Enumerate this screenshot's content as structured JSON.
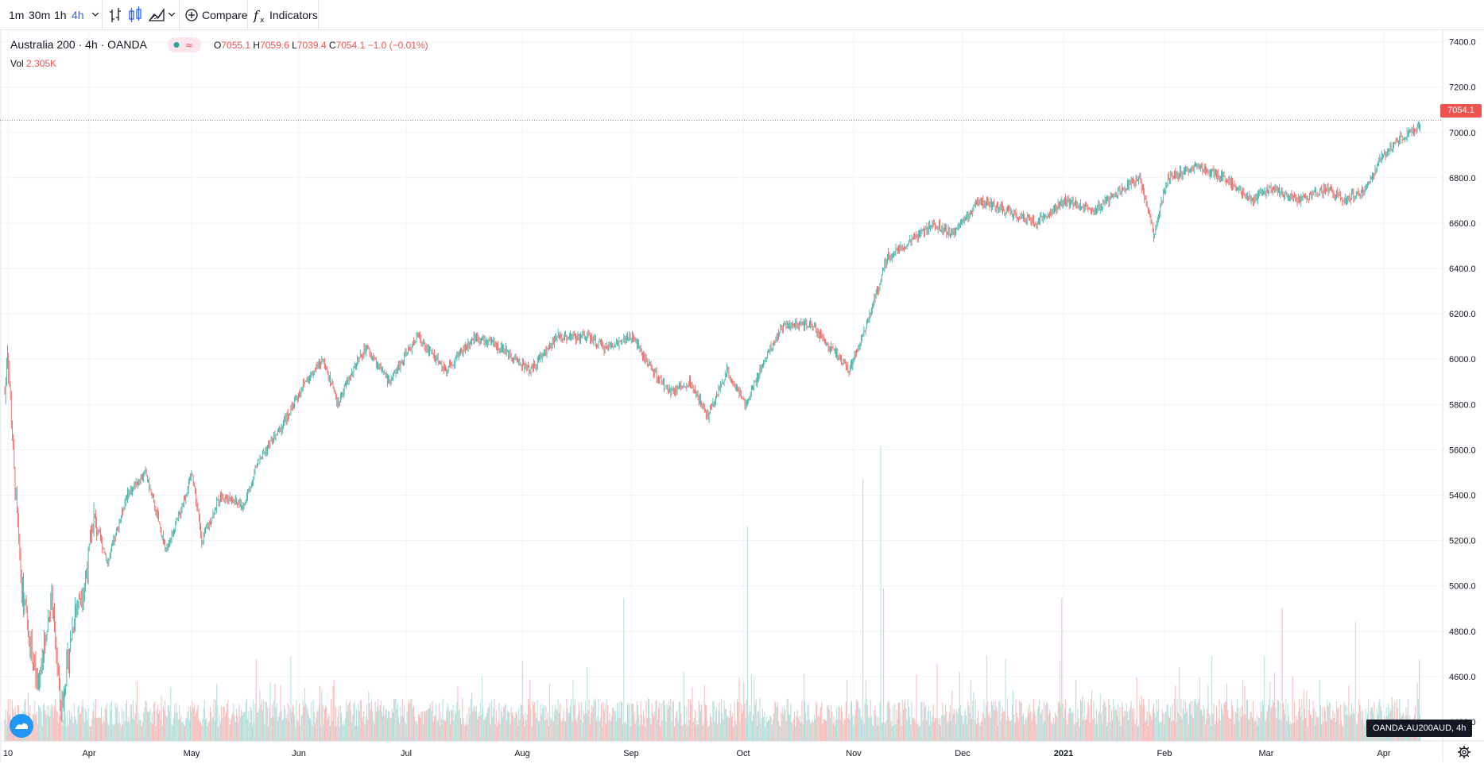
{
  "toolbar": {
    "intervals": [
      "1m",
      "30m",
      "1h",
      "4h"
    ],
    "active_interval": "4h",
    "compare_label": "Compare",
    "indicators_label": "Indicators"
  },
  "legend": {
    "symbol_title": "Australia 200 · 4h · OANDA",
    "open_key": "O",
    "open": "7055.1",
    "high_key": "H",
    "high": "7059.6",
    "low_key": "L",
    "low": "7039.4",
    "close_key": "C",
    "close": "7054.1",
    "change": "−1.0 (−0.01%)",
    "vol_key": "Vol",
    "vol": "2.305K"
  },
  "price_badge": "7054.1",
  "series_badge": "OANDA:AU200AUD, 4h",
  "colors": {
    "up": "#26a69a",
    "down": "#ef5350",
    "accent": "#2962ff",
    "grid": "#f0f3fa"
  },
  "icons": [
    "chevron-down-icon",
    "bar-chart-icon",
    "candles-icon",
    "area-chart-icon",
    "plus-circle-icon",
    "fx-icon",
    "gear-icon",
    "tv-logo-icon"
  ],
  "chart_data": {
    "type": "candlestick",
    "title": "Australia 200 · 4h · OANDA",
    "y_ticks": [
      "7400.0",
      "7200.0",
      "7000.0",
      "6800.0",
      "6600.0",
      "6400.0",
      "6200.0",
      "6000.0",
      "5800.0",
      "5600.0",
      "5400.0",
      "5200.0",
      "5000.0",
      "4800.0",
      "4600.0",
      "4400.0"
    ],
    "ylim": [
      4330,
      7430
    ],
    "x_ticks": [
      "10",
      "Apr",
      "May",
      "Jun",
      "Jul",
      "Aug",
      "Sep",
      "Oct",
      "Nov",
      "Dec",
      "2021",
      "Feb",
      "Mar",
      "Apr"
    ],
    "grid": true,
    "last_price": 7054.1,
    "price_path": [
      [
        0,
        5850
      ],
      [
        3,
        6050
      ],
      [
        10,
        5500
      ],
      [
        18,
        5000
      ],
      [
        25,
        4800
      ],
      [
        35,
        4550
      ],
      [
        50,
        4950
      ],
      [
        60,
        4450
      ],
      [
        75,
        4900
      ],
      [
        85,
        5000
      ],
      [
        95,
        5300
      ],
      [
        110,
        5100
      ],
      [
        130,
        5400
      ],
      [
        150,
        5500
      ],
      [
        163,
        5300
      ],
      [
        172,
        5150
      ],
      [
        185,
        5300
      ],
      [
        200,
        5500
      ],
      [
        210,
        5200
      ],
      [
        230,
        5400
      ],
      [
        255,
        5350
      ],
      [
        270,
        5550
      ],
      [
        295,
        5700
      ],
      [
        320,
        5900
      ],
      [
        340,
        6000
      ],
      [
        355,
        5800
      ],
      [
        365,
        5900
      ],
      [
        385,
        6050
      ],
      [
        410,
        5900
      ],
      [
        440,
        6100
      ],
      [
        470,
        5950
      ],
      [
        500,
        6100
      ],
      [
        530,
        6050
      ],
      [
        560,
        5950
      ],
      [
        590,
        6100
      ],
      [
        620,
        6100
      ],
      [
        640,
        6050
      ],
      [
        670,
        6100
      ],
      [
        690,
        5950
      ],
      [
        710,
        5850
      ],
      [
        730,
        5900
      ],
      [
        750,
        5750
      ],
      [
        770,
        5950
      ],
      [
        790,
        5800
      ],
      [
        810,
        6000
      ],
      [
        830,
        6150
      ],
      [
        860,
        6150
      ],
      [
        880,
        6050
      ],
      [
        900,
        5950
      ],
      [
        910,
        6050
      ],
      [
        930,
        6300
      ],
      [
        940,
        6450
      ],
      [
        960,
        6500
      ],
      [
        990,
        6600
      ],
      [
        1010,
        6550
      ],
      [
        1040,
        6700
      ],
      [
        1070,
        6650
      ],
      [
        1100,
        6600
      ],
      [
        1130,
        6700
      ],
      [
        1160,
        6650
      ],
      [
        1190,
        6750
      ],
      [
        1210,
        6800
      ],
      [
        1225,
        6550
      ],
      [
        1240,
        6800
      ],
      [
        1270,
        6850
      ],
      [
        1300,
        6800
      ],
      [
        1330,
        6700
      ],
      [
        1350,
        6750
      ],
      [
        1380,
        6700
      ],
      [
        1410,
        6750
      ],
      [
        1430,
        6700
      ],
      [
        1450,
        6750
      ],
      [
        1470,
        6900
      ],
      [
        1490,
        6980
      ],
      [
        1510,
        7020
      ]
    ],
    "volume_spikes": [
      [
        915,
        0.55
      ],
      [
        934,
        0.62
      ],
      [
        937,
        0.32
      ],
      [
        660,
        0.3
      ],
      [
        792,
        0.45
      ],
      [
        1127,
        0.3
      ],
      [
        1362,
        0.28
      ],
      [
        1440,
        0.25
      ]
    ]
  }
}
